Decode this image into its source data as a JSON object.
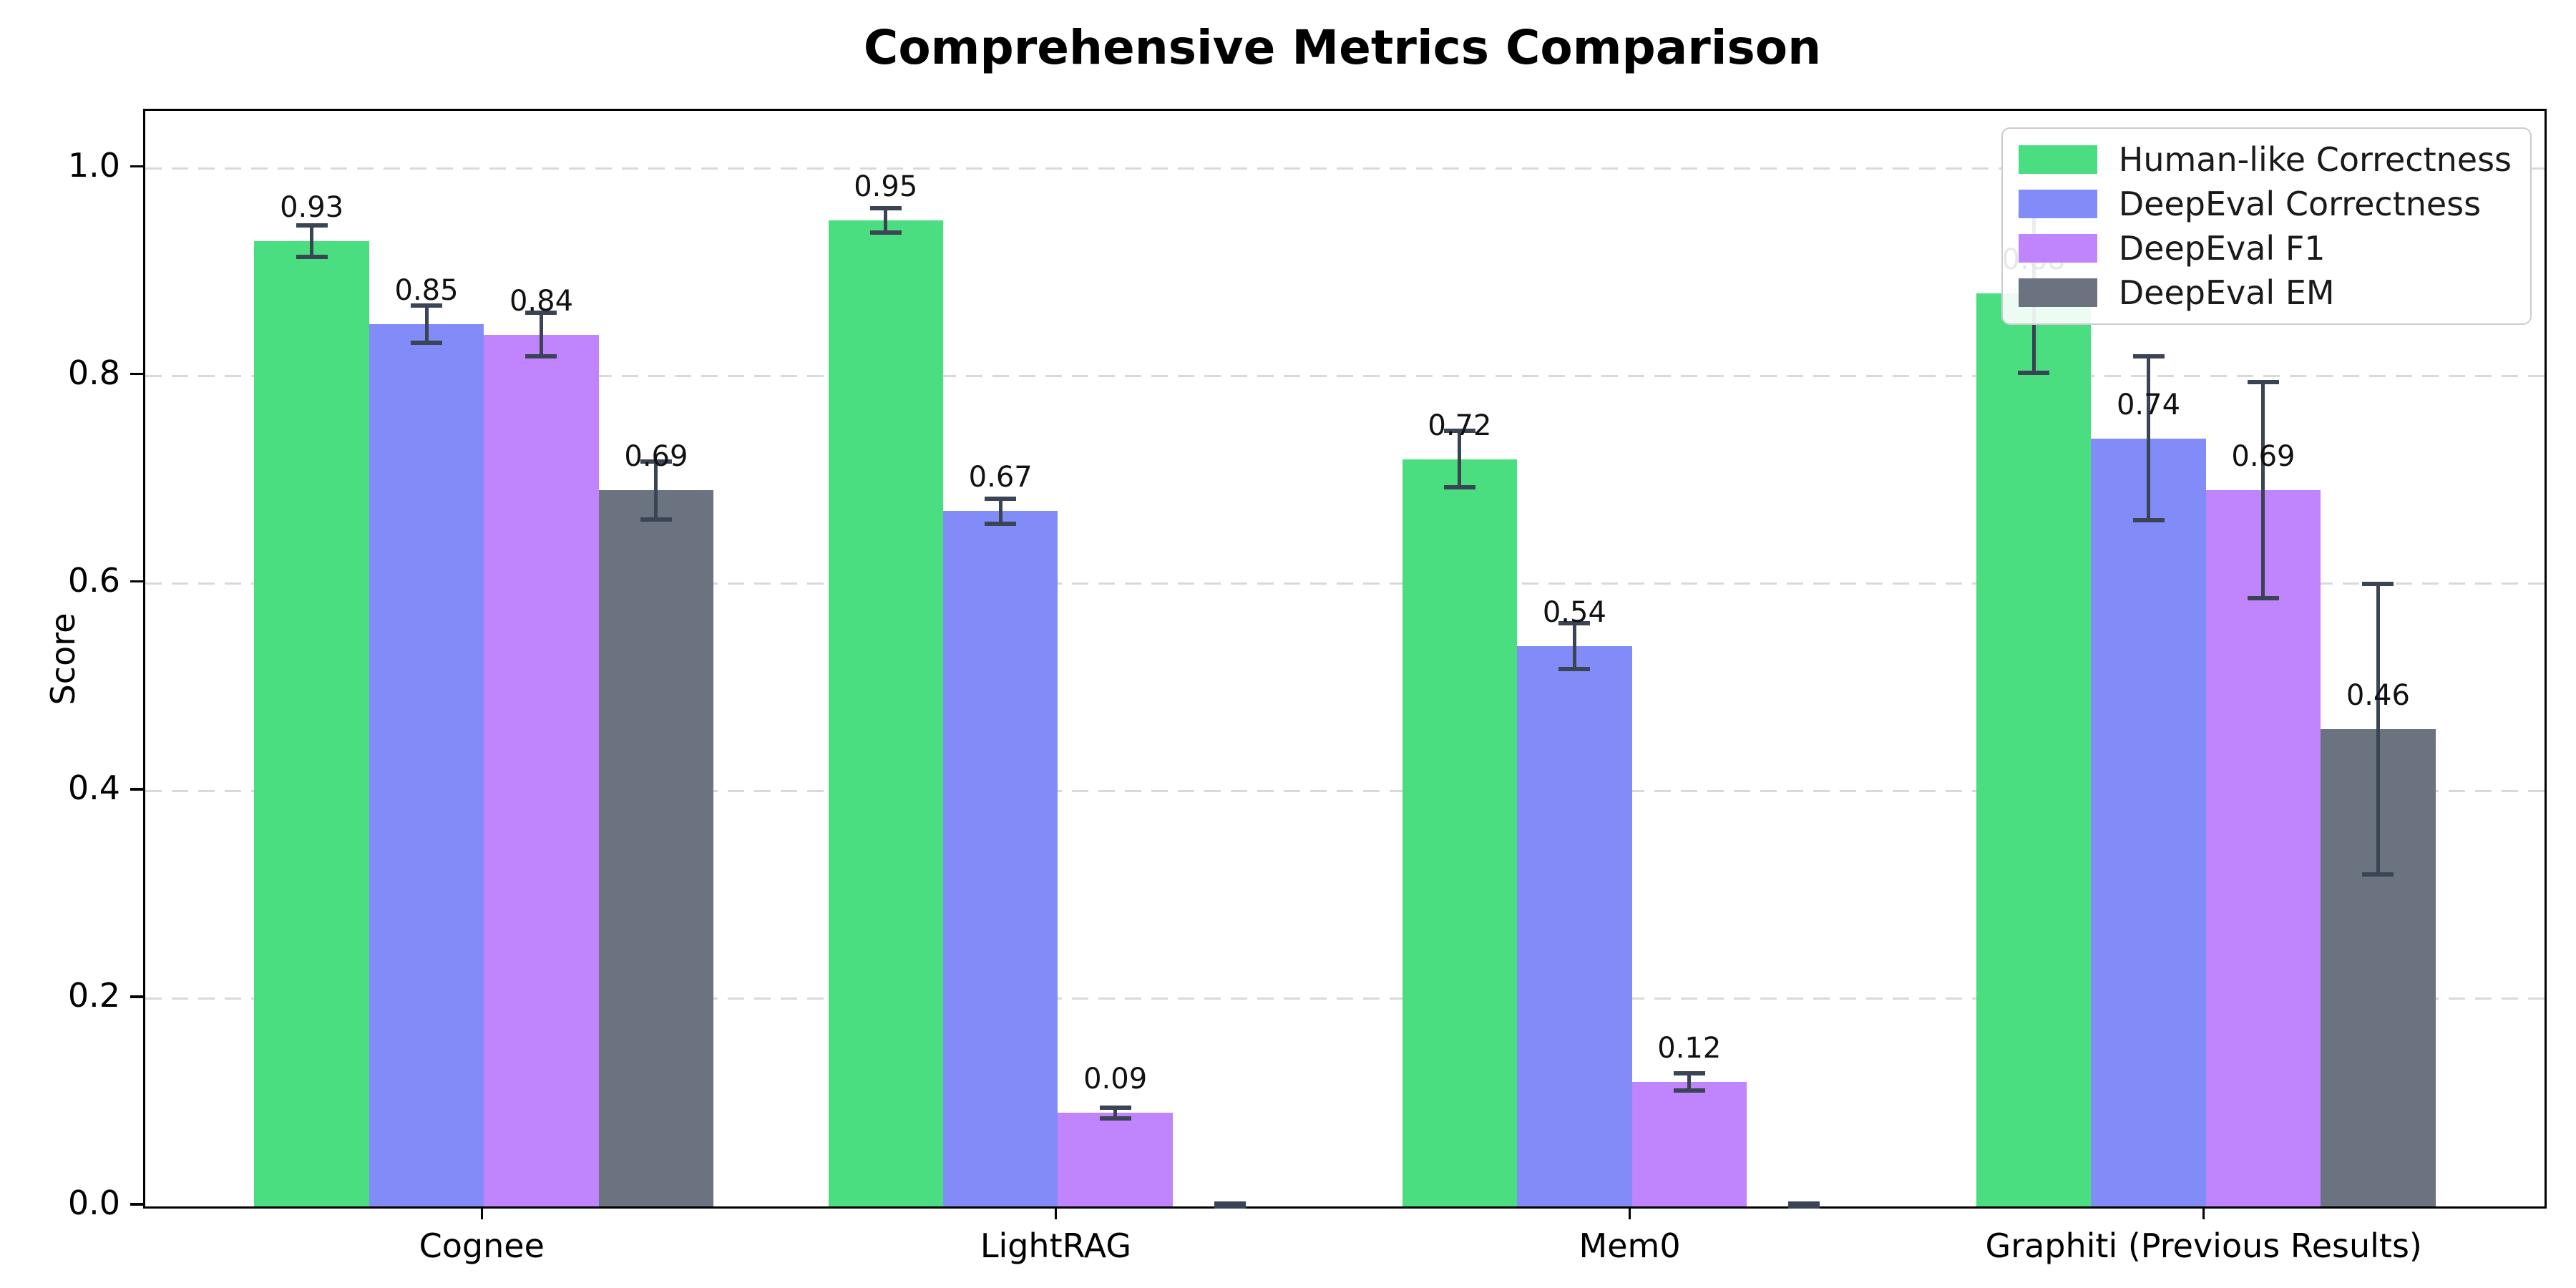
{
  "chart_data": {
    "type": "bar",
    "title": "Comprehensive Metrics Comparison",
    "xlabel": "",
    "ylabel": "Score",
    "categories": [
      "Cognee",
      "LightRAG",
      "Mem0",
      "Graphiti (Previous Results)"
    ],
    "series": [
      {
        "name": "Human-like Correctness",
        "color": "#4ade80",
        "values": [
          0.93,
          0.95,
          0.72,
          0.88
        ],
        "errors": [
          0.015,
          0.012,
          0.027,
          0.077
        ],
        "value_labels": [
          "0.93",
          "0.95",
          "0.72",
          "0.88"
        ]
      },
      {
        "name": "DeepEval Correctness",
        "color": "#818cf8",
        "values": [
          0.85,
          0.67,
          0.54,
          0.74
        ],
        "errors": [
          0.018,
          0.012,
          0.022,
          0.079
        ],
        "value_labels": [
          "0.85",
          "0.67",
          "0.54",
          "0.74"
        ]
      },
      {
        "name": "DeepEval F1",
        "color": "#c084fc",
        "values": [
          0.84,
          0.09,
          0.12,
          0.69
        ],
        "errors": [
          0.021,
          0.005,
          0.008,
          0.104
        ],
        "value_labels": [
          "0.84",
          "0.09",
          "0.12",
          "0.69"
        ]
      },
      {
        "name": "DeepEval EM",
        "color": "#6b7280",
        "values": [
          0.69,
          0.0,
          0.0,
          0.46
        ],
        "errors": [
          0.028,
          0.003,
          0.003,
          0.14
        ],
        "value_labels": [
          "0.69",
          "",
          "",
          "0.46"
        ]
      }
    ],
    "yticks": [
      "0.0",
      "0.2",
      "0.4",
      "0.6",
      "0.8",
      "1.0"
    ],
    "ylim": [
      0,
      1.0555
    ],
    "grid": "horizontal-dashed",
    "gridline_color": "#d9d9d9",
    "error_bar_color": "#3a4454",
    "legend_position": "upper right",
    "axis_color": "#000000"
  }
}
